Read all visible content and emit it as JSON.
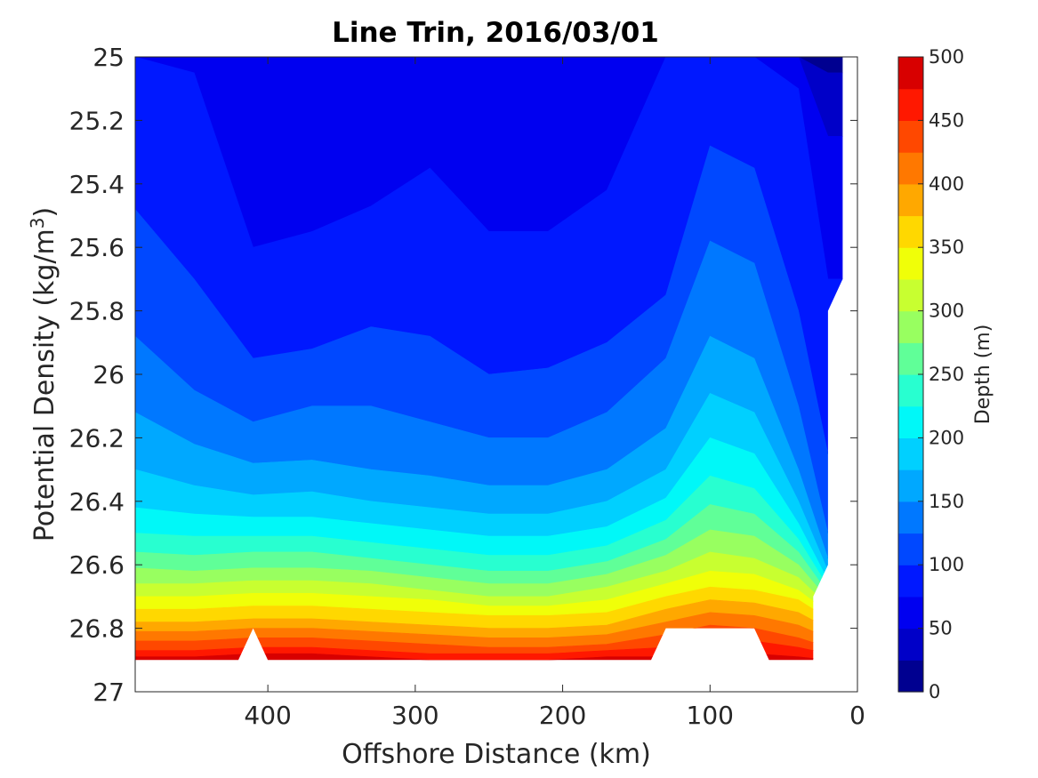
{
  "chart_data": {
    "type": "contourf",
    "title": "Line Trin, 2016/03/01",
    "xlabel": "Offshore Distance (km)",
    "ylabel": "Potential Density (kg/m3)",
    "ylabel_text": "Potential Density (kg/m",
    "ylabel_sup": "3",
    "ylabel_close": ")",
    "x_axis_reversed": true,
    "y_axis_reversed": true,
    "xlim": [
      490,
      0
    ],
    "ylim": [
      25,
      27
    ],
    "xticks": [
      400,
      300,
      200,
      100,
      0
    ],
    "xtick_labels": [
      "400",
      "300",
      "200",
      "100",
      "0"
    ],
    "yticks": [
      25,
      25.2,
      25.4,
      25.6,
      25.8,
      26,
      26.2,
      26.4,
      26.6,
      26.8,
      27
    ],
    "ytick_labels": [
      "25",
      "25.2",
      "25.4",
      "25.6",
      "25.8",
      "26",
      "26.2",
      "26.4",
      "26.6",
      "26.8",
      "27"
    ],
    "colorbar": {
      "label": "Depth (m)",
      "range": [
        0,
        500
      ],
      "ticks": [
        0,
        50,
        100,
        150,
        200,
        250,
        300,
        350,
        400,
        450,
        500
      ],
      "tick_labels": [
        "0",
        "50",
        "100",
        "150",
        "200",
        "250",
        "300",
        "350",
        "400",
        "450",
        "500"
      ],
      "levels": [
        0,
        25,
        50,
        75,
        100,
        125,
        150,
        175,
        200,
        225,
        250,
        275,
        300,
        325,
        350,
        375,
        400,
        425,
        450,
        475,
        500
      ],
      "colormap": "jet",
      "colors": [
        "#000090",
        "#0000c8",
        "#0000f0",
        "#0018ff",
        "#0048ff",
        "#0078ff",
        "#00a8ff",
        "#00d0ff",
        "#00f8f8",
        "#28ffd0",
        "#60ff98",
        "#98ff60",
        "#c8ff30",
        "#f0ff08",
        "#ffd800",
        "#ffa800",
        "#ff7800",
        "#ff4800",
        "#ff1800",
        "#d80000"
      ]
    },
    "depth_field": {
      "x_km": [
        490,
        450,
        410,
        370,
        330,
        290,
        250,
        210,
        170,
        130,
        100,
        70,
        40,
        20
      ],
      "iso_depth_m": [
        25,
        50,
        75,
        100,
        125,
        150,
        175,
        200,
        225,
        250,
        275,
        300,
        325,
        350,
        375,
        400,
        425,
        450,
        475
      ],
      "iso_density": [
        [
          25.0,
          25.0,
          25.0,
          25.0,
          25.0,
          25.0,
          25.0,
          25.0,
          25.0,
          25.0,
          25.0,
          25.0,
          25.0,
          25.05
        ],
        [
          25.0,
          25.0,
          25.0,
          25.0,
          25.0,
          25.0,
          25.0,
          25.0,
          25.0,
          25.0,
          25.0,
          25.0,
          25.0,
          25.25
        ],
        [
          25.0,
          25.05,
          25.6,
          25.55,
          25.47,
          25.35,
          25.55,
          25.55,
          25.42,
          25.0,
          25.0,
          25.0,
          25.1,
          25.7
        ],
        [
          25.48,
          25.7,
          25.95,
          25.92,
          25.85,
          25.88,
          26.0,
          25.98,
          25.9,
          25.75,
          25.28,
          25.35,
          25.8,
          26.25
        ],
        [
          25.88,
          26.05,
          26.15,
          26.1,
          26.1,
          26.15,
          26.2,
          26.2,
          26.12,
          25.95,
          25.58,
          25.65,
          26.1,
          26.5
        ],
        [
          26.12,
          26.22,
          26.28,
          26.27,
          26.3,
          26.32,
          26.35,
          26.35,
          26.3,
          26.17,
          25.88,
          25.95,
          26.3,
          26.58
        ],
        [
          26.3,
          26.35,
          26.38,
          26.37,
          26.4,
          26.42,
          26.44,
          26.44,
          26.4,
          26.3,
          26.06,
          26.12,
          26.4,
          26.62
        ],
        [
          26.42,
          26.44,
          26.45,
          26.45,
          26.47,
          26.49,
          26.51,
          26.51,
          26.48,
          26.39,
          26.2,
          26.25,
          26.47,
          26.65
        ],
        [
          26.5,
          26.51,
          26.51,
          26.51,
          26.53,
          26.55,
          26.57,
          26.57,
          26.54,
          26.46,
          26.32,
          26.36,
          26.52,
          26.67
        ],
        [
          26.56,
          26.57,
          26.56,
          26.56,
          26.58,
          26.6,
          26.62,
          26.62,
          26.59,
          26.52,
          26.41,
          26.44,
          26.56,
          26.69
        ],
        [
          26.61,
          26.62,
          26.61,
          26.61,
          26.62,
          26.64,
          26.66,
          26.66,
          26.63,
          26.57,
          26.49,
          26.51,
          26.6,
          26.71
        ],
        [
          26.66,
          26.66,
          26.65,
          26.65,
          26.66,
          26.68,
          26.7,
          26.7,
          26.67,
          26.62,
          26.56,
          26.58,
          26.64,
          26.73
        ],
        [
          26.7,
          26.7,
          26.69,
          26.69,
          26.7,
          26.71,
          26.73,
          26.73,
          26.71,
          26.66,
          26.62,
          26.63,
          26.68,
          26.75
        ],
        [
          26.74,
          26.74,
          26.73,
          26.73,
          26.74,
          26.75,
          26.76,
          26.76,
          26.75,
          26.7,
          26.67,
          26.68,
          26.71,
          26.77
        ],
        [
          26.78,
          26.78,
          26.77,
          26.77,
          26.78,
          26.79,
          26.8,
          26.8,
          26.79,
          26.74,
          26.71,
          26.72,
          26.75,
          26.8
        ],
        [
          26.81,
          26.81,
          26.8,
          26.8,
          26.81,
          26.82,
          26.83,
          26.83,
          26.82,
          26.78,
          26.75,
          26.76,
          26.79,
          26.83
        ],
        [
          26.84,
          26.84,
          26.83,
          26.83,
          26.84,
          26.85,
          26.86,
          26.86,
          26.85,
          26.82,
          26.79,
          26.8,
          26.83,
          26.86
        ],
        [
          26.87,
          26.87,
          26.86,
          26.86,
          26.87,
          26.88,
          26.88,
          26.88,
          26.87,
          26.86,
          26.83,
          26.84,
          26.86,
          26.88
        ],
        [
          26.89,
          26.89,
          26.88,
          26.88,
          26.89,
          26.9,
          26.9,
          26.9,
          26.89,
          26.89,
          26.87,
          26.88,
          26.89,
          26.9
        ]
      ],
      "data_boundary": {
        "bottom": [
          [
            490,
            26.9
          ],
          [
            420,
            26.9
          ],
          [
            410,
            26.8
          ],
          [
            400,
            26.9
          ],
          [
            140,
            26.9
          ],
          [
            130,
            26.8
          ],
          [
            70,
            26.8
          ],
          [
            60,
            26.9
          ],
          [
            30,
            26.9
          ],
          [
            30,
            26.7
          ],
          [
            20,
            26.6
          ],
          [
            20,
            25.8
          ],
          [
            10,
            25.7
          ],
          [
            10,
            25.0
          ]
        ]
      }
    },
    "grid": false,
    "legend": "colorbar-right"
  }
}
